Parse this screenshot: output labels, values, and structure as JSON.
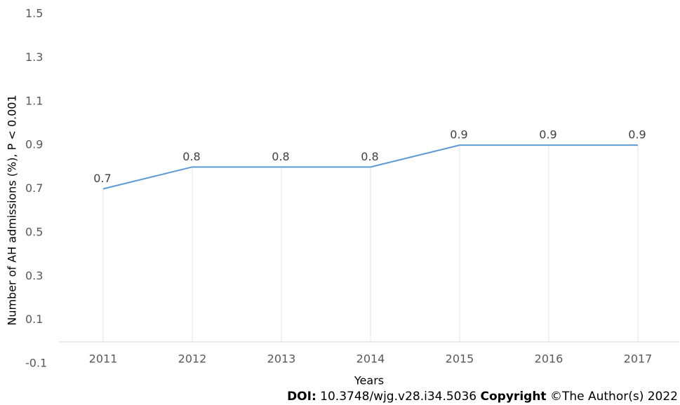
{
  "chart_data": {
    "type": "line",
    "categories": [
      "2011",
      "2012",
      "2013",
      "2014",
      "2015",
      "2016",
      "2017"
    ],
    "series": [
      {
        "name": "AH admissions",
        "color": "#5b9bd5",
        "values": [
          0.7,
          0.8,
          0.8,
          0.8,
          0.9,
          0.9,
          0.9
        ]
      }
    ],
    "ylim": [
      -0.1,
      1.5
    ],
    "yticks": [
      -0.1,
      0.1,
      0.3,
      0.5,
      0.7,
      0.9,
      1.1,
      1.3,
      1.5
    ],
    "ylabel": "Number of AH admissions (%), P < 0.001",
    "xlabel": "Years"
  },
  "footer": {
    "doi_label": "DOI:",
    "doi": "10.3748/wjg.v28.i34.5036",
    "copyright_label": "Copyright",
    "copyright": "©The Author(s) 2022"
  }
}
